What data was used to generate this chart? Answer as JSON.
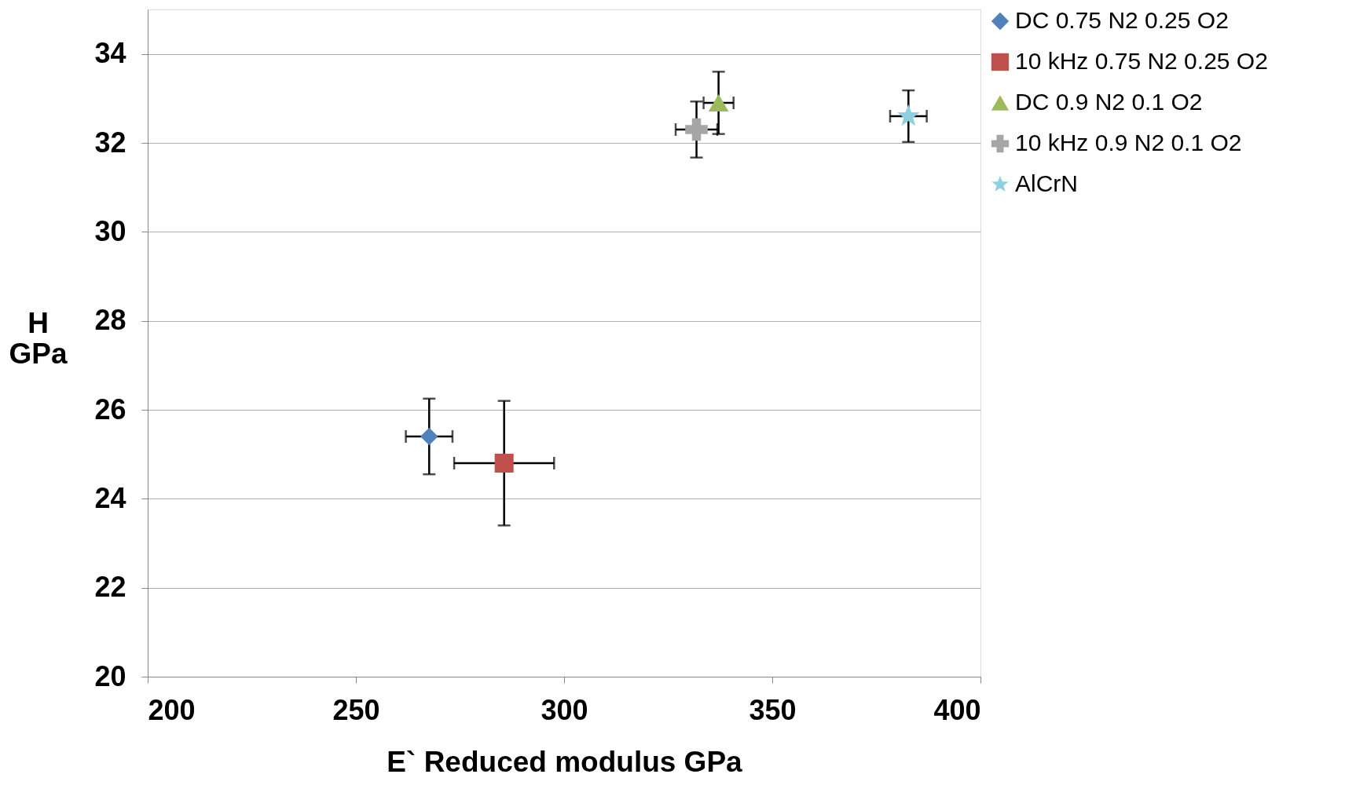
{
  "chart_data": {
    "type": "scatter",
    "xlabel": "E` Reduced modulus  GPa",
    "ylabel": "H GPa",
    "xlim": [
      200,
      400
    ],
    "xticks": [
      200,
      250,
      300,
      350,
      400
    ],
    "ylim": [
      20,
      35
    ],
    "yticks": [
      20,
      22,
      24,
      26,
      28,
      30,
      32,
      34
    ],
    "grid": "y",
    "legend": "right",
    "series": [
      {
        "name": "DC 0.75 N2 0.25 O2",
        "color": "#4f81bd",
        "marker": "diamond",
        "x": [
          267.6
        ],
        "values": [
          25.4
        ],
        "errors": [
          0.85
        ],
        "xerrors": [
          5.6
        ]
      },
      {
        "name": "10 kHz 0.75  N2 0.25 O2",
        "color": "#c0504d",
        "marker": "square",
        "x": [
          285.6
        ],
        "values": [
          24.8
        ],
        "errors": [
          1.4
        ],
        "xerrors": [
          12
        ]
      },
      {
        "name": "DC 0.9 N2 0.1 O2",
        "color": "#9bbb59",
        "marker": "triangle",
        "x": [
          337.1
        ],
        "values": [
          32.9
        ],
        "errors": [
          0.7
        ],
        "xerrors": [
          3.6
        ]
      },
      {
        "name": "10 kHz 0.9  N2 0.1 O2",
        "color": "#a6a6a6",
        "marker": "cross",
        "x": [
          331.8
        ],
        "values": [
          32.3
        ],
        "errors": [
          0.63
        ],
        "xerrors": [
          5
        ]
      },
      {
        "name": "AlCrN",
        "color": "#8fd0e0",
        "marker": "star",
        "x": [
          382.7
        ],
        "values": [
          32.6
        ],
        "errors": [
          0.58
        ],
        "xerrors": [
          4.4
        ]
      }
    ]
  }
}
